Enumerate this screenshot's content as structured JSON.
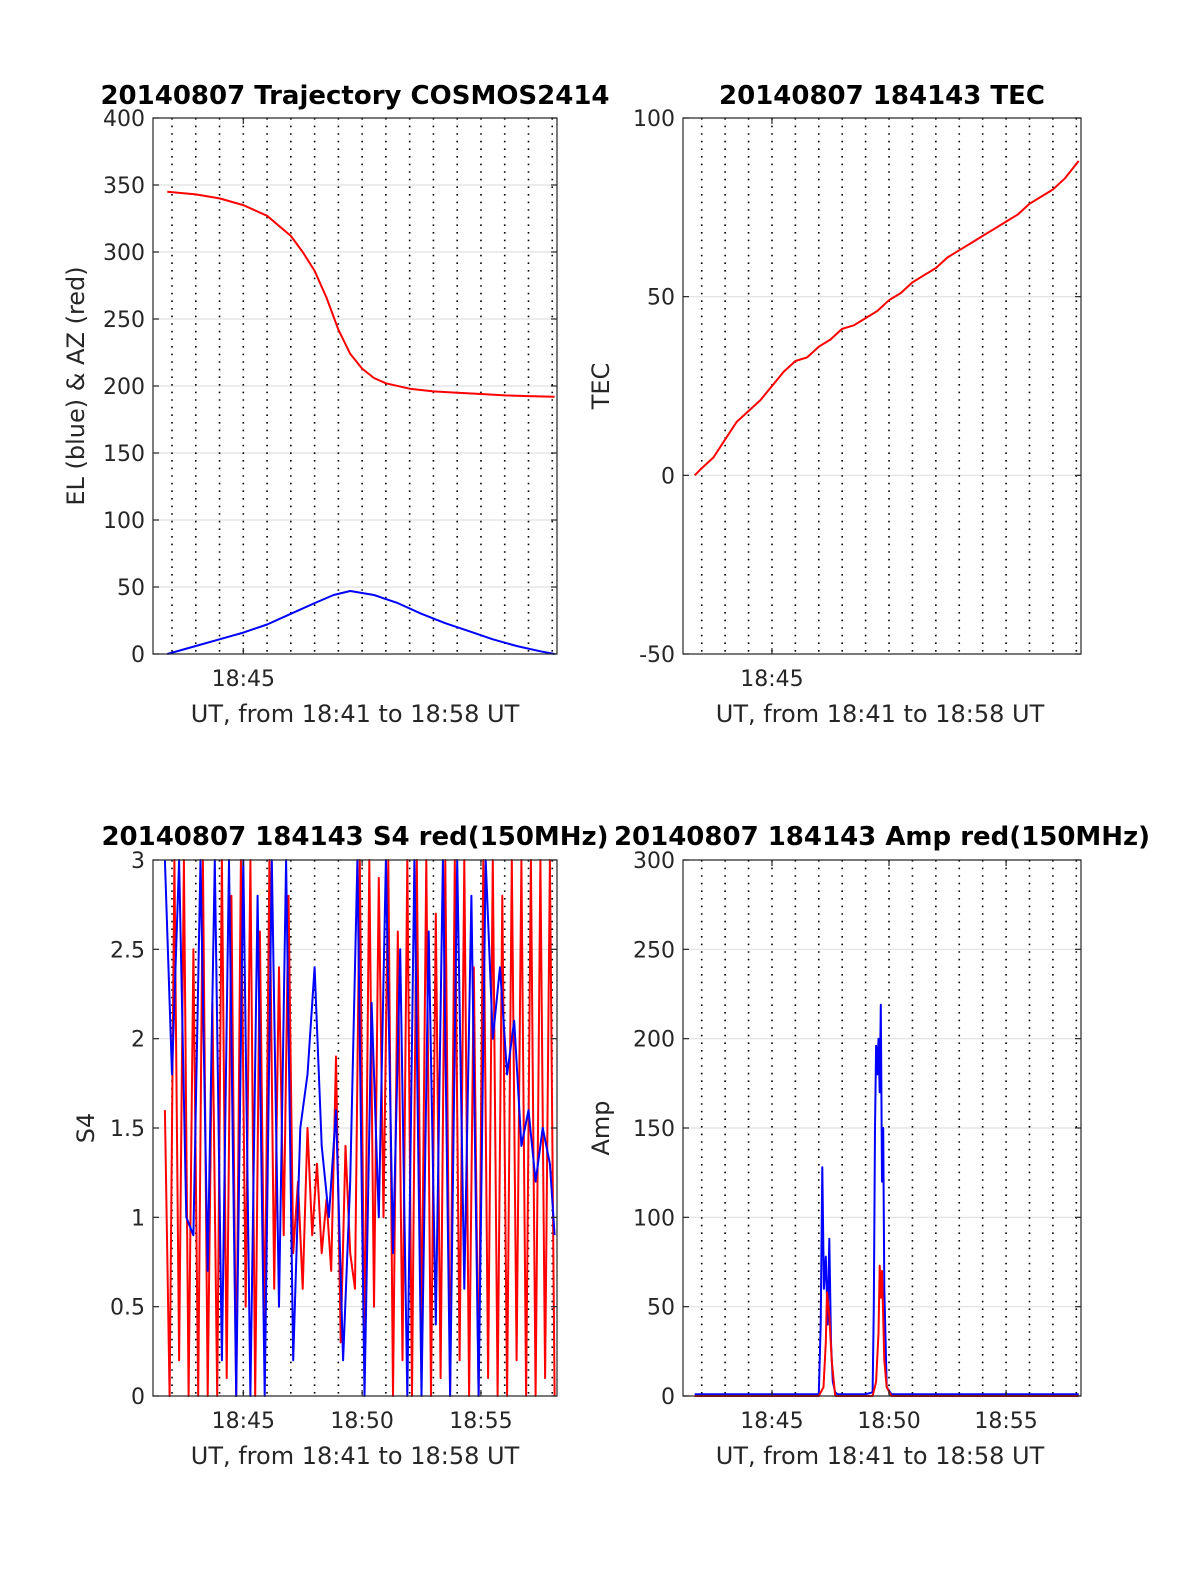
{
  "chart_data": [
    {
      "id": "trajectory",
      "type": "line",
      "title": "20140807 Trajectory COSMOS2414",
      "xlabel": "UT, from 18:41 to 18:58 UT",
      "ylabel": "EL (blue) & AZ (red)",
      "xlim": [
        41.2,
        58.2
      ],
      "ylim": [
        0,
        400
      ],
      "xticks": [
        {
          "v": 45,
          "label": "18:45"
        }
      ],
      "yticks": [
        0,
        50,
        100,
        150,
        200,
        250,
        300,
        350,
        400
      ],
      "grid": true,
      "series": [
        {
          "key": "az",
          "color": "#ff0000",
          "x": [
            41.8,
            43,
            44,
            45,
            46,
            47,
            47.5,
            48,
            48.5,
            49,
            49.5,
            50,
            50.5,
            51,
            52,
            53,
            54,
            55,
            56,
            57,
            58.1
          ],
          "values": [
            345,
            343,
            340,
            335,
            327,
            312,
            300,
            286,
            266,
            242,
            224,
            213,
            206,
            202,
            198,
            196,
            195,
            194,
            193,
            192.5,
            192
          ]
        },
        {
          "key": "el",
          "color": "#0000ff",
          "x": [
            41.8,
            43,
            44,
            45,
            46,
            47,
            48,
            48.8,
            49.5,
            50.5,
            51.5,
            52.5,
            53.5,
            54.5,
            55.5,
            56.5,
            57.5,
            58.1
          ],
          "values": [
            0,
            6,
            11,
            16,
            22,
            30,
            38,
            44,
            47,
            44,
            38,
            30,
            23,
            17,
            11,
            6,
            2,
            0
          ]
        }
      ]
    },
    {
      "id": "tec",
      "type": "line",
      "title": "20140807 184143 TEC",
      "xlabel": "UT, from 18:41 to 18:58 UT",
      "ylabel": "TEC",
      "xlim": [
        41.2,
        58.2
      ],
      "ylim": [
        -50,
        100
      ],
      "xticks": [
        {
          "v": 45,
          "label": "18:45"
        }
      ],
      "yticks": [
        -50,
        0,
        50,
        100
      ],
      "grid": true,
      "series": [
        {
          "key": "tec",
          "color": "#ff0000",
          "x": [
            41.7,
            42,
            42.5,
            43,
            43.5,
            44,
            44.5,
            45,
            45.5,
            46,
            46.5,
            47,
            47.5,
            48,
            48.5,
            49,
            49.5,
            50,
            50.5,
            51,
            51.5,
            52,
            52.5,
            53,
            53.5,
            54,
            54.5,
            55,
            55.5,
            56,
            56.5,
            57,
            57.5,
            58.1
          ],
          "values": [
            0,
            2,
            5,
            10,
            15,
            18,
            21,
            25,
            29,
            32,
            33,
            36,
            38,
            41,
            42,
            44,
            46,
            49,
            51,
            54,
            56,
            58,
            61,
            63,
            65,
            67,
            69,
            71,
            73,
            76,
            78,
            80,
            83,
            88
          ]
        }
      ]
    },
    {
      "id": "s4",
      "type": "line",
      "title": "20140807 184143 S4 red(150MHz)",
      "xlabel": "UT, from 18:41 to 18:58 UT",
      "ylabel": "S4",
      "xlim": [
        41.2,
        58.2
      ],
      "ylim": [
        0,
        3
      ],
      "xticks": [
        {
          "v": 45,
          "label": "18:45"
        },
        {
          "v": 50,
          "label": "18:50"
        },
        {
          "v": 55,
          "label": "18:55"
        }
      ],
      "yticks": [
        0,
        0.5,
        1,
        1.5,
        2,
        2.5,
        3
      ],
      "grid": true,
      "series": [
        {
          "key": "s4red",
          "color": "#ff0000",
          "x": [
            41.7,
            41.9,
            42.1,
            42.3,
            42.5,
            42.7,
            42.9,
            43.1,
            43.3,
            43.5,
            43.7,
            43.9,
            44.1,
            44.3,
            44.5,
            44.7,
            44.9,
            45.1,
            45.3,
            45.5,
            45.7,
            45.9,
            46.1,
            46.3,
            46.5,
            46.7,
            46.9,
            47.1,
            47.3,
            47.5,
            47.7,
            47.9,
            48.1,
            48.3,
            48.5,
            48.7,
            48.9,
            49.1,
            49.3,
            49.5,
            49.7,
            49.9,
            50.1,
            50.3,
            50.5,
            50.7,
            50.9,
            51.1,
            51.3,
            51.5,
            51.7,
            51.9,
            52.1,
            52.3,
            52.5,
            52.7,
            52.9,
            53.1,
            53.3,
            53.5,
            53.7,
            53.9,
            54.1,
            54.3,
            54.5,
            54.7,
            54.9,
            55.1,
            55.3,
            55.5,
            55.7,
            55.9,
            56.1,
            56.3,
            56.5,
            56.7,
            56.9,
            57.1,
            57.3,
            57.5,
            57.7,
            57.9,
            58.1
          ],
          "values": [
            1.6,
            0,
            3,
            0.2,
            3,
            0,
            2.5,
            0,
            3,
            0,
            2.2,
            0,
            3,
            0.1,
            2.8,
            0,
            3,
            0.5,
            3,
            0,
            2.6,
            0.3,
            3,
            0.6,
            2.4,
            0.9,
            2.8,
            0.8,
            1.2,
            0.6,
            1.5,
            0.9,
            1.3,
            0.8,
            1.1,
            0.7,
            1.9,
            0.3,
            1.4,
            0.8,
            0.6,
            3,
            0.2,
            3,
            0.5,
            2.9,
            1,
            3,
            0,
            2.6,
            0.2,
            3,
            0,
            3,
            0.3,
            3,
            0,
            2.7,
            0.1,
            3,
            0,
            3,
            0.2,
            3,
            0,
            2.4,
            0,
            3,
            0.1,
            3,
            0,
            2.8,
            0,
            3,
            0.2,
            3,
            0,
            3,
            0,
            3,
            0.1,
            3,
            0
          ]
        },
        {
          "key": "s4blue",
          "color": "#0000ff",
          "x": [
            41.7,
            42,
            42.3,
            42.6,
            42.9,
            43.2,
            43.5,
            43.8,
            44.1,
            44.4,
            44.7,
            45,
            45.3,
            45.6,
            45.9,
            46.2,
            46.5,
            46.8,
            47.1,
            47.4,
            47.7,
            48,
            48.3,
            48.6,
            48.9,
            49.2,
            49.5,
            49.8,
            50.1,
            50.4,
            50.7,
            51,
            51.3,
            51.6,
            51.9,
            52.2,
            52.5,
            52.8,
            53.1,
            53.4,
            53.7,
            54,
            54.3,
            54.6,
            54.9,
            55.2,
            55.5,
            55.8,
            56.1,
            56.4,
            56.7,
            57,
            57.3,
            57.6,
            57.9,
            58.1
          ],
          "values": [
            3,
            1.8,
            3,
            1,
            0.9,
            3,
            0.7,
            3,
            0.2,
            3,
            0,
            3,
            0,
            2.8,
            0,
            3,
            0.5,
            3,
            0.2,
            1.5,
            1.8,
            2.4,
            1.4,
            1,
            1.6,
            0.2,
            1.2,
            3,
            0,
            2.2,
            1,
            3,
            0.8,
            2.5,
            0,
            3,
            0,
            2.6,
            0.4,
            3,
            0,
            3,
            0.6,
            2.8,
            0,
            3,
            2,
            2.4,
            1.8,
            2.1,
            1.4,
            1.6,
            1.2,
            1.5,
            1.3,
            0.9
          ]
        }
      ]
    },
    {
      "id": "amp",
      "type": "line",
      "title": "20140807 184143 Amp red(150MHz)",
      "xlabel": "UT, from 18:41 to 18:58 UT",
      "ylabel": "Amp",
      "xlim": [
        41.2,
        58.2
      ],
      "ylim": [
        0,
        300
      ],
      "xticks": [
        {
          "v": 45,
          "label": "18:45"
        },
        {
          "v": 50,
          "label": "18:50"
        },
        {
          "v": 55,
          "label": "18:55"
        }
      ],
      "yticks": [
        0,
        50,
        100,
        150,
        200,
        250,
        300
      ],
      "grid": true,
      "series": [
        {
          "key": "ampblue",
          "color": "#0000ff",
          "x": [
            41.7,
            45,
            47,
            47.08,
            47.15,
            47.22,
            47.3,
            47.38,
            47.45,
            47.52,
            47.6,
            47.7,
            47.8,
            48,
            49,
            49.3,
            49.35,
            49.4,
            49.45,
            49.5,
            49.55,
            49.6,
            49.65,
            49.7,
            49.75,
            49.8,
            49.9,
            50.1,
            52,
            55,
            58.1
          ],
          "values": [
            1,
            1,
            1,
            40,
            128,
            60,
            78,
            40,
            88,
            30,
            8,
            2,
            1,
            1,
            1,
            2,
            50,
            150,
            196,
            180,
            200,
            170,
            219,
            120,
            150,
            60,
            5,
            1,
            1,
            1,
            1
          ]
        },
        {
          "key": "ampred",
          "color": "#ff0000",
          "x": [
            41.7,
            47,
            47.2,
            47.3,
            47.35,
            47.45,
            47.55,
            47.7,
            49.3,
            49.45,
            49.55,
            49.6,
            49.65,
            49.7,
            49.8,
            49.9,
            50.1,
            58.1
          ],
          "values": [
            0,
            0,
            5,
            30,
            58,
            45,
            20,
            0,
            0,
            8,
            35,
            73,
            55,
            70,
            20,
            5,
            0,
            0
          ]
        }
      ]
    }
  ]
}
